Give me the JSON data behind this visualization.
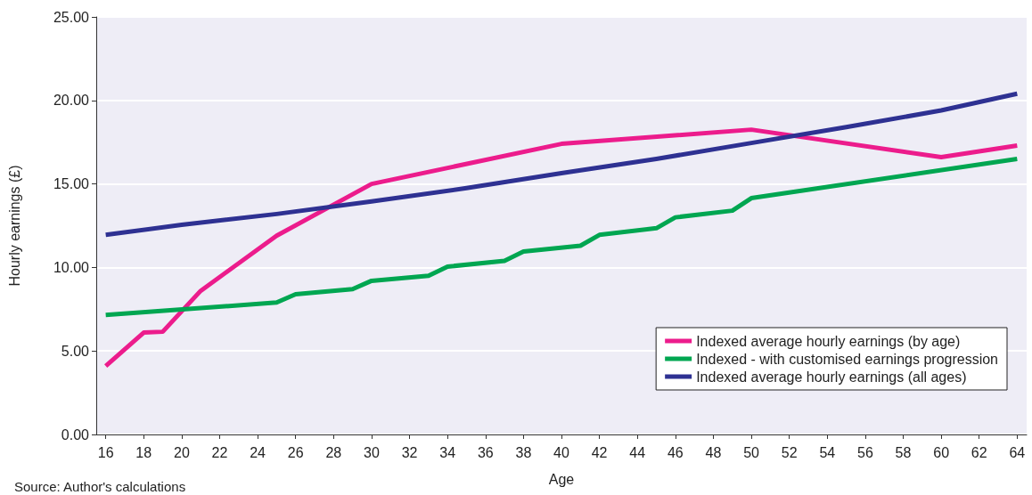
{
  "chart_data": {
    "type": "line",
    "xlabel": "Age",
    "ylabel": "Hourly earnings (£)",
    "annotations": [
      "Source: Author's calculations"
    ],
    "xlim": [
      15.5,
      64.5
    ],
    "xticks": [
      16,
      18,
      20,
      22,
      24,
      26,
      28,
      30,
      32,
      34,
      36,
      38,
      40,
      42,
      44,
      46,
      48,
      50,
      52,
      54,
      56,
      58,
      60,
      62,
      64
    ],
    "ylim": [
      0,
      25
    ],
    "yticks": [
      {
        "value": 0,
        "label": "0.00"
      },
      {
        "value": 5,
        "label": "5.00"
      },
      {
        "value": 10,
        "label": "10.00"
      },
      {
        "value": 15,
        "label": "15.00"
      },
      {
        "value": 20,
        "label": "20.00"
      },
      {
        "value": 25,
        "label": "25.00"
      }
    ],
    "grid": "y",
    "legend": "bottom right",
    "marker": "none",
    "line_style": "solid",
    "series": [
      {
        "name": "Indexed average hourly earnings (by age)",
        "color": "#ec1c8c",
        "x": [
          16,
          18,
          19,
          21,
          25,
          30,
          40,
          50,
          60,
          64
        ],
        "values": [
          4.1,
          6.1,
          6.15,
          8.6,
          11.9,
          15.0,
          17.4,
          18.25,
          16.6,
          17.3
        ]
      },
      {
        "name": "Indexed - with customised earnings progression",
        "color": "#00a651",
        "x": [
          16,
          25,
          26,
          29,
          30,
          33,
          34,
          37,
          38,
          41,
          42,
          45,
          46,
          49,
          50,
          64
        ],
        "values": [
          7.15,
          7.9,
          8.4,
          8.7,
          9.2,
          9.5,
          10.05,
          10.4,
          10.95,
          11.3,
          11.95,
          12.35,
          13.0,
          13.4,
          14.15,
          16.5
        ]
      },
      {
        "name": "Indexed average hourly earnings (all ages)",
        "color": "#2e3192",
        "x": [
          16,
          20,
          25,
          30,
          35,
          40,
          45,
          50,
          55,
          60,
          64
        ],
        "values": [
          11.95,
          12.55,
          13.2,
          13.95,
          14.75,
          15.65,
          16.5,
          17.45,
          18.4,
          19.4,
          20.4
        ]
      }
    ]
  }
}
